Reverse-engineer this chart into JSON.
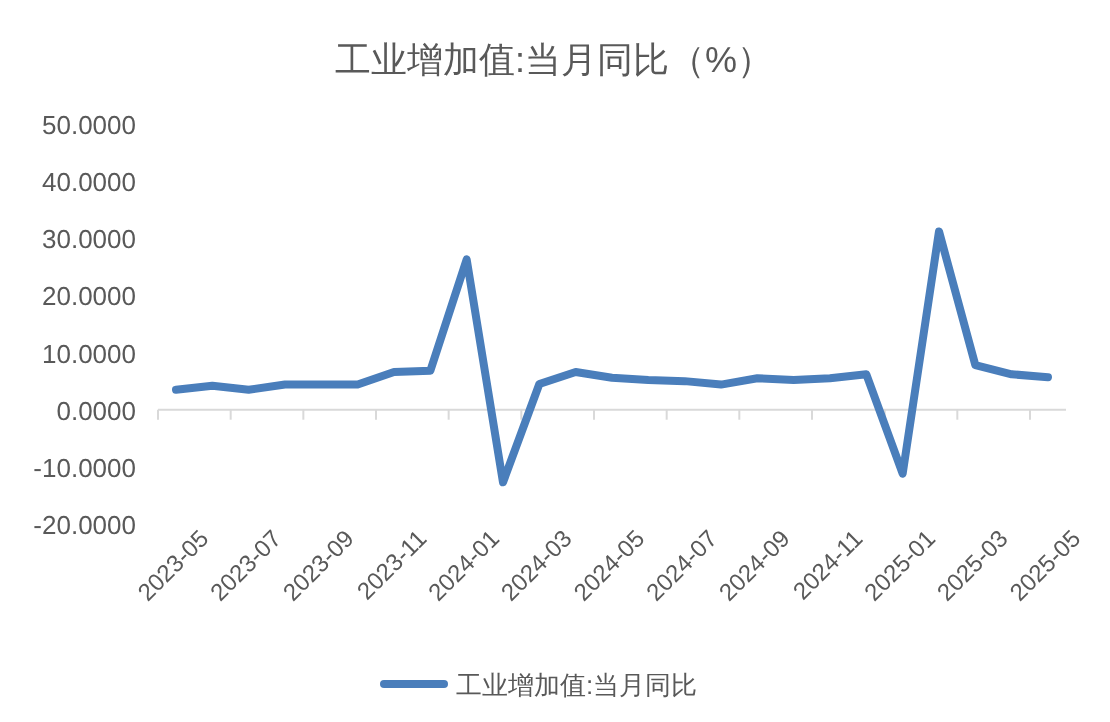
{
  "chart_data": {
    "type": "line",
    "title": "工业增加值:当月同比（%）",
    "categories": [
      "2023-05",
      null,
      "2023-07",
      null,
      "2023-09",
      null,
      "2023-11",
      null,
      "2024-01",
      null,
      "2024-03",
      null,
      "2024-05",
      null,
      "2024-07",
      null,
      "2024-09",
      null,
      "2024-11",
      null,
      "2025-01",
      null,
      "2025-03",
      null,
      "2025-05"
    ],
    "series": [
      {
        "name": "工业增加值:当月同比",
        "color": "#4a7ebb",
        "values": [
          3.5,
          4.2,
          3.5,
          4.4,
          4.4,
          4.4,
          6.6,
          6.8,
          26.3,
          -12.7,
          4.5,
          6.6,
          5.6,
          5.2,
          5.0,
          4.4,
          5.5,
          5.2,
          5.5,
          6.2,
          -11.2,
          31.2,
          7.8,
          6.2,
          5.7
        ]
      }
    ],
    "ylim": [
      -20,
      50
    ],
    "yticks": [
      {
        "value": -20,
        "label": "-20.0000"
      },
      {
        "value": -10,
        "label": "-10.0000"
      },
      {
        "value": 0,
        "label": "0.0000"
      },
      {
        "value": 10,
        "label": "10.0000"
      },
      {
        "value": 20,
        "label": "20.0000"
      },
      {
        "value": 30,
        "label": "30.0000"
      },
      {
        "value": 40,
        "label": "40.0000"
      },
      {
        "value": 50,
        "label": "50.0000"
      }
    ],
    "legend": "bottom"
  }
}
